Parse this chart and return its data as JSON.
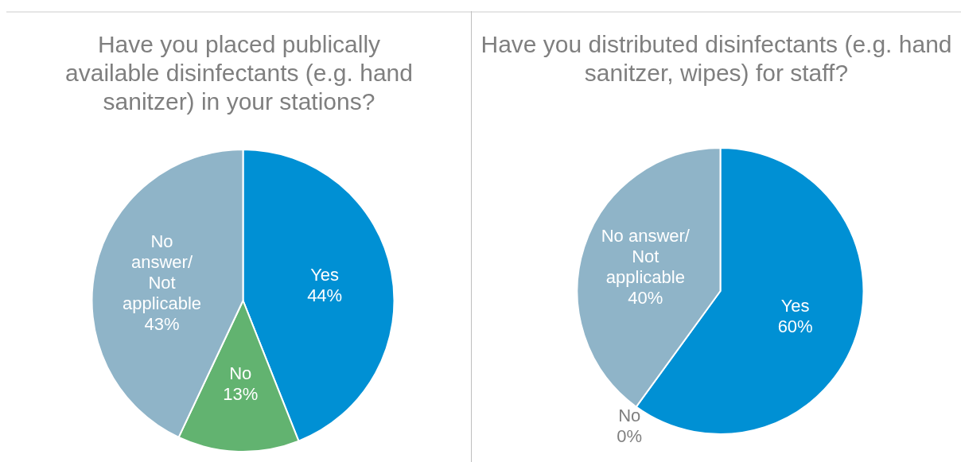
{
  "chart_data": [
    {
      "type": "pie",
      "title": "Have you placed publically available disinfectants (e.g. hand sanitzer) in your stations?",
      "categories": [
        "Yes",
        "No",
        "No answer/ Not applicable"
      ],
      "values": [
        44,
        13,
        43
      ],
      "colors": [
        "#0090d4",
        "#62b370",
        "#8fb4c8"
      ],
      "value_labels": [
        "44%",
        "13%",
        "43%"
      ],
      "legend": false
    },
    {
      "type": "pie",
      "title": "Have you distributed disinfectants (e.g. hand sanitzer, wipes) for staff?",
      "categories": [
        "Yes",
        "No",
        "No answer/ Not applicable"
      ],
      "values": [
        60,
        0,
        40
      ],
      "colors": [
        "#0090d4",
        "#62b370",
        "#8fb4c8"
      ],
      "value_labels": [
        "60%",
        "0%",
        "40%"
      ],
      "legend": false
    }
  ]
}
